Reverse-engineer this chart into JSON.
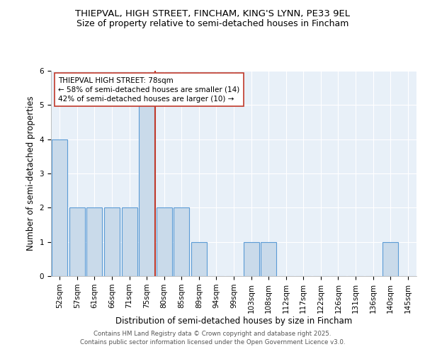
{
  "title1": "THIEPVAL, HIGH STREET, FINCHAM, KING'S LYNN, PE33 9EL",
  "title2": "Size of property relative to semi-detached houses in Fincham",
  "categories": [
    "52sqm",
    "57sqm",
    "61sqm",
    "66sqm",
    "71sqm",
    "75sqm",
    "80sqm",
    "85sqm",
    "89sqm",
    "94sqm",
    "99sqm",
    "103sqm",
    "108sqm",
    "112sqm",
    "117sqm",
    "122sqm",
    "126sqm",
    "131sqm",
    "136sqm",
    "140sqm",
    "145sqm"
  ],
  "values": [
    4,
    2,
    2,
    2,
    2,
    5,
    2,
    2,
    1,
    0,
    0,
    1,
    1,
    0,
    0,
    0,
    0,
    0,
    0,
    1,
    0
  ],
  "bar_color": "#c9daea",
  "bar_edge_color": "#5b9bd5",
  "property_line_x": 5.5,
  "property_line_color": "#c0392b",
  "annotation_title": "THIEPVAL HIGH STREET: 78sqm",
  "annotation_line1": "← 58% of semi-detached houses are smaller (14)",
  "annotation_line2": "42% of semi-detached houses are larger (10) →",
  "xlabel": "Distribution of semi-detached houses by size in Fincham",
  "ylabel": "Number of semi-detached properties",
  "ylim": [
    0,
    6
  ],
  "yticks": [
    0,
    1,
    2,
    3,
    4,
    5,
    6
  ],
  "footnote1": "Contains HM Land Registry data © Crown copyright and database right 2025.",
  "footnote2": "Contains public sector information licensed under the Open Government Licence v3.0.",
  "plot_bg_color": "#e8f0f8",
  "title_fontsize": 9.5,
  "subtitle_fontsize": 9,
  "axis_label_fontsize": 8.5,
  "tick_fontsize": 7.5,
  "annotation_fontsize": 7.5
}
